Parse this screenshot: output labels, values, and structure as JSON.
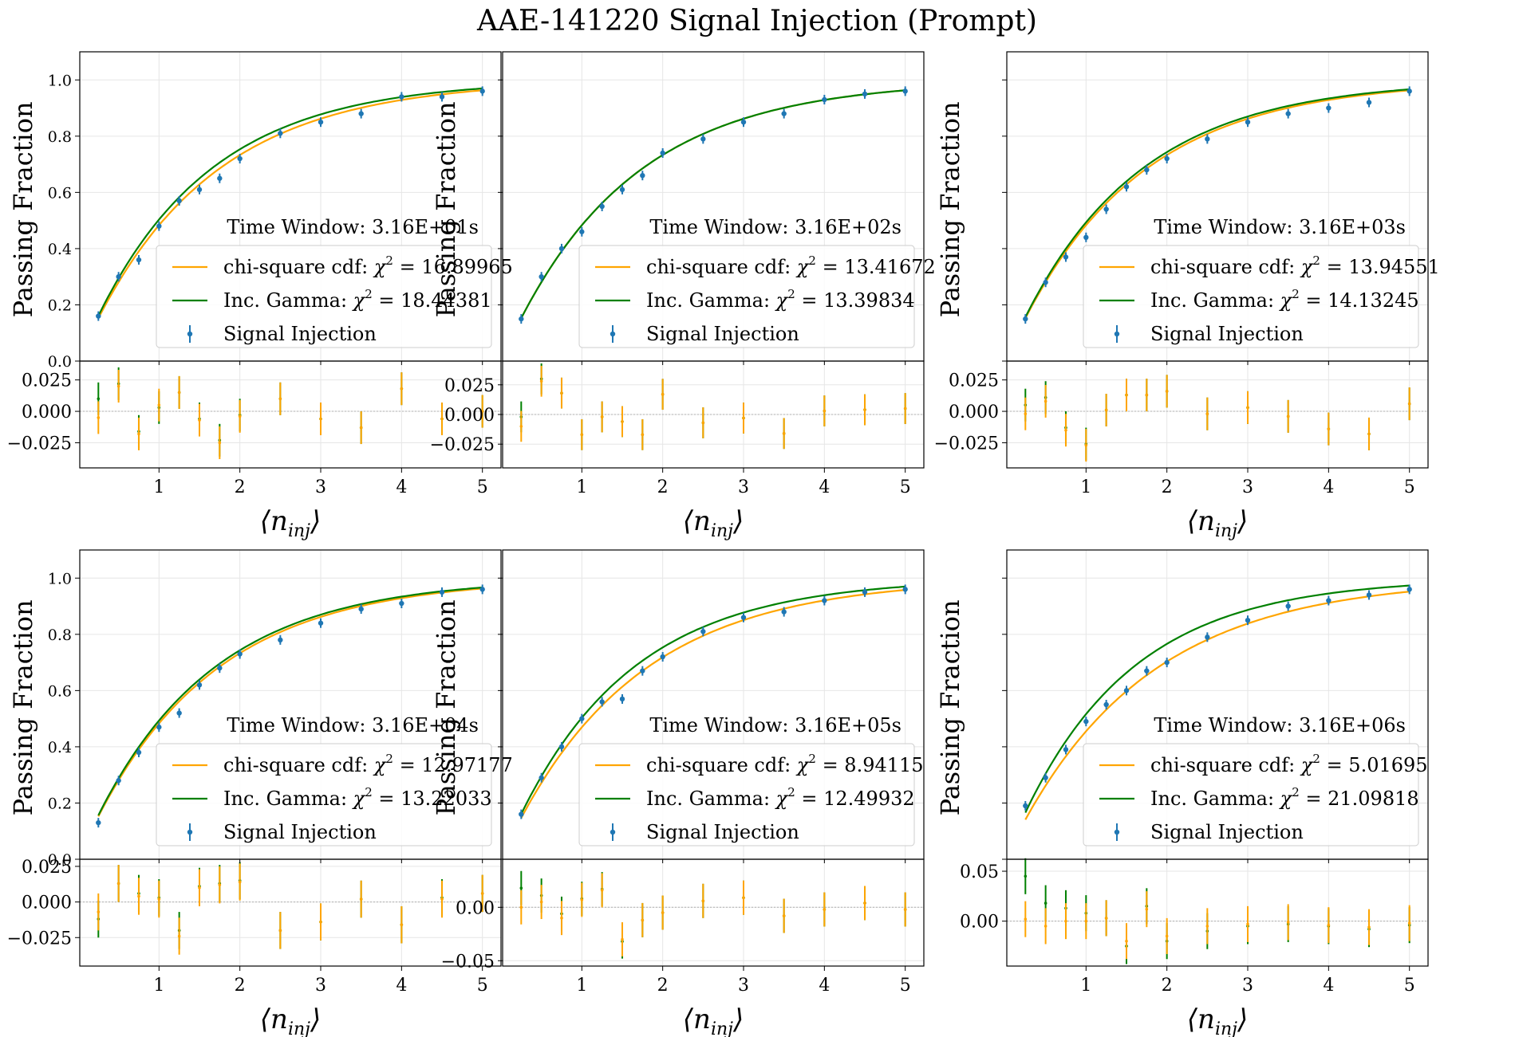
{
  "figure": {
    "title": "AAE-141220 Signal Injection (Prompt)"
  },
  "colors": {
    "chi": "#ffa500",
    "gamma": "#008000",
    "injection": "#1f77b4",
    "grid": "#e6e6e6",
    "zero": "#b0b0b0"
  },
  "labels": {
    "ylabel": "Passing Fraction",
    "xlabel": "⟨n",
    "xlabel_sub": "inj",
    "xlabel_close": "⟩"
  },
  "legend": {
    "window_prefix": "Time Window: ",
    "chi_prefix": "chi-square cdf: ",
    "gamma_prefix": "Inc. Gamma: ",
    "chi_symbol": "χ",
    "chi_exp": "2",
    "eq": " = ",
    "injection": "Signal Injection"
  },
  "chart_data": [
    {
      "type": "line",
      "time_window": "3.16E+01s",
      "chi2_chisq": "16.89965",
      "chi2_gamma": "18.44381",
      "ylim": [
        0,
        1.1
      ],
      "yticks": [
        "0.0",
        "0.2",
        "0.4",
        "0.6",
        "0.8",
        "1.0"
      ],
      "xticks": [
        "1",
        "2",
        "3",
        "4",
        "5"
      ],
      "x": [
        0.25,
        0.5,
        0.75,
        1.0,
        1.25,
        1.5,
        1.75,
        2.0,
        2.5,
        3.0,
        3.5,
        4.0,
        4.5,
        5.0
      ],
      "injection": [
        0.16,
        0.3,
        0.36,
        0.48,
        0.57,
        0.61,
        0.65,
        0.72,
        0.81,
        0.85,
        0.88,
        0.94,
        0.94,
        0.96
      ],
      "chisq_k": 1.0,
      "gamma_k": 1.06,
      "res_ylim": [
        -0.045,
        0.04
      ],
      "res_yticks": [
        -0.025,
        0.0,
        0.025
      ],
      "res_yticklabels": [
        "−0.025",
        "0.000",
        "0.025"
      ],
      "res_chisq": [
        -0.005,
        0.02,
        -0.018,
        0.005,
        0.015,
        -0.007,
        -0.025,
        -0.004,
        0.01,
        -0.006,
        -0.013,
        0.018,
        -0.006,
        0.0
      ],
      "res_gamma": [
        0.01,
        0.022,
        -0.016,
        0.003,
        0.015,
        -0.006,
        -0.023,
        -0.003,
        0.01,
        -0.006,
        -0.013,
        0.018,
        -0.006,
        0.0
      ],
      "res_err": 0.013
    },
    {
      "type": "line",
      "time_window": "3.16E+02s",
      "chi2_chisq": "13.41672",
      "chi2_gamma": "13.39834",
      "ylim": [
        0,
        1.1
      ],
      "yticks": [],
      "xticks": [
        "1",
        "2",
        "3",
        "4",
        "5"
      ],
      "x": [
        0.25,
        0.5,
        0.75,
        1.0,
        1.25,
        1.5,
        1.75,
        2.0,
        2.5,
        3.0,
        3.5,
        4.0,
        4.5,
        5.0
      ],
      "injection": [
        0.15,
        0.3,
        0.4,
        0.46,
        0.55,
        0.61,
        0.66,
        0.74,
        0.79,
        0.85,
        0.88,
        0.93,
        0.95,
        0.96
      ],
      "chisq_k": 1.0,
      "gamma_k": 1.0,
      "res_ylim": [
        -0.045,
        0.045
      ],
      "res_yticks": [
        -0.025,
        0.0,
        0.025
      ],
      "res_yticklabels": [
        "−0.025",
        "0.000",
        "0.025"
      ],
      "res_chisq": [
        -0.01,
        0.028,
        0.018,
        -0.017,
        -0.002,
        -0.006,
        -0.017,
        0.017,
        -0.007,
        -0.003,
        -0.016,
        0.003,
        0.004,
        0.005
      ],
      "res_gamma": [
        -0.002,
        0.03,
        0.018,
        -0.017,
        -0.002,
        -0.006,
        -0.017,
        0.017,
        -0.007,
        -0.003,
        -0.016,
        0.003,
        0.004,
        0.005
      ],
      "res_err": 0.013
    },
    {
      "type": "line",
      "time_window": "3.16E+03s",
      "chi2_chisq": "13.94551",
      "chi2_gamma": "14.13245",
      "ylim": [
        0,
        1.1
      ],
      "yticks": [],
      "xticks": [
        "1",
        "2",
        "3",
        "4",
        "5"
      ],
      "x": [
        0.25,
        0.5,
        0.75,
        1.0,
        1.25,
        1.5,
        1.75,
        2.0,
        2.5,
        3.0,
        3.5,
        4.0,
        4.5,
        5.0
      ],
      "injection": [
        0.15,
        0.28,
        0.37,
        0.44,
        0.54,
        0.62,
        0.68,
        0.72,
        0.79,
        0.85,
        0.88,
        0.9,
        0.92,
        0.96
      ],
      "chisq_k": 1.0,
      "gamma_k": 1.03,
      "res_ylim": [
        -0.045,
        0.04
      ],
      "res_yticks": [
        -0.025,
        0.0,
        0.025
      ],
      "res_yticklabels": [
        "−0.025",
        "0.000",
        "0.025"
      ],
      "res_chisq": [
        -0.002,
        0.008,
        -0.015,
        -0.027,
        0.001,
        0.013,
        0.013,
        0.016,
        -0.002,
        0.003,
        -0.004,
        -0.014,
        -0.018,
        0.006
      ],
      "res_gamma": [
        0.005,
        0.011,
        -0.013,
        -0.026,
        0.001,
        0.013,
        0.013,
        0.016,
        -0.002,
        0.003,
        -0.004,
        -0.014,
        -0.018,
        0.006
      ],
      "res_err": 0.013
    },
    {
      "type": "line",
      "time_window": "3.16E+04s",
      "chi2_chisq": "12.97177",
      "chi2_gamma": "13.22033",
      "ylim": [
        0,
        1.1
      ],
      "yticks": [
        "0.0",
        "0.2",
        "0.4",
        "0.6",
        "0.8",
        "1.0"
      ],
      "xticks": [
        "1",
        "2",
        "3",
        "4",
        "5"
      ],
      "x": [
        0.25,
        0.5,
        0.75,
        1.0,
        1.25,
        1.5,
        1.75,
        2.0,
        2.5,
        3.0,
        3.5,
        4.0,
        4.5,
        5.0
      ],
      "injection": [
        0.13,
        0.28,
        0.38,
        0.47,
        0.52,
        0.62,
        0.68,
        0.73,
        0.78,
        0.84,
        0.89,
        0.91,
        0.95,
        0.96
      ],
      "chisq_k": 1.0,
      "gamma_k": 1.03,
      "res_ylim": [
        -0.045,
        0.03
      ],
      "res_yticks": [
        -0.025,
        0.0,
        0.025
      ],
      "res_yticklabels": [
        "−0.025",
        "0.000",
        "0.025"
      ],
      "res_chisq": [
        -0.007,
        0.013,
        0.004,
        0.002,
        -0.024,
        0.01,
        0.012,
        0.014,
        -0.02,
        -0.014,
        0.002,
        -0.016,
        0.002,
        0.006
      ],
      "res_gamma": [
        -0.012,
        0.013,
        0.006,
        0.003,
        -0.02,
        0.011,
        0.013,
        0.015,
        -0.02,
        -0.014,
        0.002,
        -0.016,
        0.003,
        0.006
      ],
      "res_err": 0.013
    },
    {
      "type": "line",
      "time_window": "3.16E+05s",
      "chi2_chisq": "8.94115",
      "chi2_gamma": "12.49932",
      "ylim": [
        0,
        1.1
      ],
      "yticks": [],
      "xticks": [
        "1",
        "2",
        "3",
        "4",
        "5"
      ],
      "x": [
        0.25,
        0.5,
        0.75,
        1.0,
        1.25,
        1.5,
        1.75,
        2.0,
        2.5,
        3.0,
        3.5,
        4.0,
        4.5,
        5.0
      ],
      "injection": [
        0.16,
        0.29,
        0.4,
        0.5,
        0.56,
        0.57,
        0.67,
        0.72,
        0.81,
        0.86,
        0.88,
        0.92,
        0.95,
        0.96
      ],
      "chisq_k": 0.96,
      "gamma_k": 1.06,
      "res_ylim": [
        -0.055,
        0.045
      ],
      "res_yticks": [
        -0.05,
        0.0
      ],
      "res_yticklabels": [
        "−0.05",
        "0.00"
      ],
      "res_chisq": [
        0.0,
        0.005,
        -0.01,
        0.007,
        0.016,
        -0.03,
        -0.012,
        -0.005,
        0.006,
        0.009,
        -0.008,
        -0.002,
        0.004,
        -0.002
      ],
      "res_gamma": [
        0.018,
        0.011,
        -0.006,
        0.008,
        0.017,
        -0.032,
        -0.012,
        -0.005,
        0.006,
        0.009,
        -0.008,
        -0.002,
        0.004,
        -0.002
      ],
      "res_err": 0.016
    },
    {
      "type": "line",
      "time_window": "3.16E+06s",
      "chi2_chisq": "5.01695",
      "chi2_gamma": "21.09818",
      "ylim": [
        0,
        1.1
      ],
      "yticks": [],
      "xticks": [
        "1",
        "2",
        "3",
        "4",
        "5"
      ],
      "x": [
        0.25,
        0.5,
        0.75,
        1.0,
        1.25,
        1.5,
        1.75,
        2.0,
        2.5,
        3.0,
        3.5,
        4.0,
        4.5,
        5.0
      ],
      "injection": [
        0.19,
        0.29,
        0.39,
        0.49,
        0.55,
        0.6,
        0.67,
        0.7,
        0.79,
        0.85,
        0.9,
        0.92,
        0.94,
        0.96
      ],
      "chisq_k": 0.92,
      "gamma_k": 1.1,
      "res_ylim": [
        -0.045,
        0.062
      ],
      "res_yticks": [
        0.0,
        0.05
      ],
      "res_yticklabels": [
        "0.00",
        "0.05"
      ],
      "res_chisq": [
        0.002,
        -0.005,
        0.0,
        0.0,
        0.003,
        -0.02,
        0.012,
        -0.015,
        -0.005,
        -0.003,
        -0.001,
        -0.004,
        -0.006,
        -0.002
      ],
      "res_gamma": [
        0.045,
        0.018,
        0.013,
        0.008,
        0.003,
        -0.025,
        0.015,
        -0.02,
        -0.01,
        -0.005,
        -0.003,
        -0.005,
        -0.008,
        -0.004
      ],
      "res_err": 0.018
    }
  ]
}
